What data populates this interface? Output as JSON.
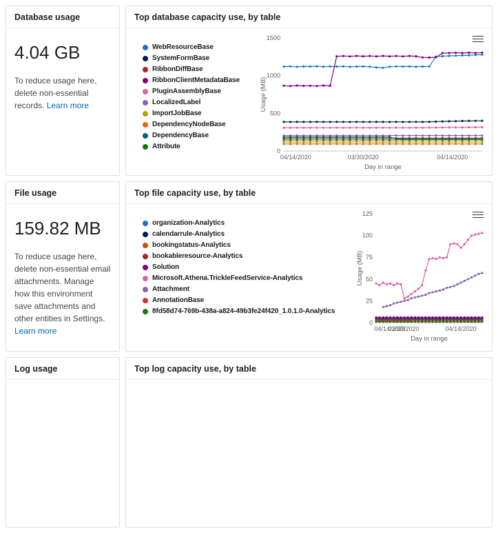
{
  "cards": {
    "database": {
      "title": "Database usage",
      "value": "4.04 GB",
      "description": "To reduce usage here, delete non-essential records. ",
      "link_label": "Learn more"
    },
    "database_chart": {
      "title": "Top database capacity use, by table"
    },
    "file": {
      "title": "File usage",
      "value": "159.82 MB",
      "description": "To reduce usage here, delete non-essential email attachments. Manage how this environment save attachments and other entities in Settings. ",
      "link_label": "Learn more"
    },
    "file_chart": {
      "title": "Top file capacity use, by table"
    },
    "log": {
      "title": "Log usage"
    },
    "log_chart": {
      "title": "Top log capacity use, by table"
    }
  },
  "chart_data": [
    {
      "type": "line",
      "title": "Top database capacity use, by table",
      "xlabel": "Day in range",
      "ylabel": "Usage (MB)",
      "ylim": [
        0,
        1500
      ],
      "yticks": [
        0,
        500,
        1000,
        1500
      ],
      "xtick_labels": [
        "04/14/2020",
        "03/30/2020",
        "04/14/2020"
      ],
      "xtick_pos": [
        0.06,
        0.4,
        0.85
      ],
      "legend_position": "left",
      "grid": false,
      "series": [
        {
          "name": "WebResourceBase",
          "color": "#1673c6",
          "values": [
            1120,
            1122,
            1118,
            1121,
            1120,
            1123,
            1119,
            1121,
            1120,
            1122,
            1118,
            1120,
            1121,
            1119,
            1108,
            1104,
            1118,
            1122,
            1120,
            1121,
            1119,
            1120,
            1122,
            1252,
            1258,
            1262,
            1264,
            1268,
            1270,
            1274,
            1278
          ]
        },
        {
          "name": "SystemFormBase",
          "color": "#002050",
          "values": [
            386,
            386,
            387,
            386,
            386,
            387,
            386,
            386,
            387,
            386,
            386,
            387,
            386,
            386,
            387,
            386,
            386,
            387,
            386,
            386,
            387,
            386,
            388,
            390,
            392,
            394,
            396,
            398,
            399,
            400,
            401
          ]
        },
        {
          "name": "RibbonDiffBase",
          "color": "#a4262c",
          "values": [
            170,
            170,
            171,
            170,
            170,
            171,
            170,
            170,
            171,
            170,
            170,
            171,
            170,
            170,
            171,
            170,
            170,
            171,
            170,
            170,
            171,
            170,
            170,
            171,
            170,
            170,
            171,
            170,
            170,
            171,
            170
          ]
        },
        {
          "name": "RibbonClientMetadataBase",
          "color": "#800080",
          "values": [
            866,
            862,
            868,
            864,
            866,
            862,
            868,
            864,
            1256,
            1260,
            1256,
            1261,
            1257,
            1260,
            1256,
            1261,
            1257,
            1260,
            1256,
            1261,
            1257,
            1241,
            1239,
            1243,
            1298,
            1301,
            1303,
            1300,
            1304,
            1301,
            1305
          ]
        },
        {
          "name": "PluginAssemblyBase",
          "color": "#e060a8",
          "values": [
            308,
            308,
            309,
            308,
            308,
            309,
            308,
            308,
            309,
            308,
            308,
            309,
            308,
            308,
            309,
            308,
            308,
            309,
            308,
            308,
            309,
            308,
            310,
            311,
            312,
            313,
            314,
            314,
            315,
            315,
            316
          ]
        },
        {
          "name": "LocalizedLabel",
          "color": "#8764b8",
          "values": [
            205,
            205,
            206,
            205,
            205,
            206,
            205,
            205,
            206,
            205,
            205,
            206,
            205,
            205,
            206,
            205,
            205,
            206,
            205,
            205,
            206,
            205,
            205,
            206,
            205,
            205,
            206,
            205,
            205,
            206,
            205
          ]
        },
        {
          "name": "ImportJobBase",
          "color": "#c19c00",
          "values": [
            120,
            120,
            121,
            120,
            120,
            121,
            120,
            120,
            121,
            120,
            120,
            121,
            120,
            120,
            121,
            120,
            120,
            121,
            120,
            120,
            121,
            120,
            120,
            121,
            120,
            120,
            121,
            120,
            120,
            121,
            120
          ]
        },
        {
          "name": "DependencyNodeBase",
          "color": "#e8680a",
          "values": [
            93,
            93,
            94,
            93,
            93,
            94,
            93,
            93,
            94,
            93,
            93,
            94,
            93,
            93,
            94,
            93,
            93,
            94,
            93,
            93,
            94,
            93,
            93,
            94,
            93,
            93,
            94,
            93,
            93,
            94,
            93
          ]
        },
        {
          "name": "DependencyBase",
          "color": "#00666d",
          "values": [
            186,
            186,
            187,
            186,
            186,
            187,
            186,
            186,
            187,
            186,
            186,
            187,
            186,
            186,
            187,
            186,
            186,
            160,
            158,
            157,
            158,
            157,
            157,
            158,
            157,
            157,
            158,
            157,
            157,
            158,
            157
          ]
        },
        {
          "name": "Attribute",
          "color": "#107c10",
          "values": [
            147,
            147,
            148,
            147,
            147,
            148,
            147,
            147,
            148,
            147,
            147,
            148,
            147,
            147,
            148,
            147,
            147,
            148,
            147,
            147,
            148,
            147,
            147,
            148,
            147,
            147,
            148,
            147,
            147,
            148,
            147
          ]
        }
      ]
    },
    {
      "type": "line",
      "title": "Top file capacity use, by table",
      "xlabel": "Day in range",
      "ylabel": "Usage (MB)",
      "ylim": [
        0,
        125
      ],
      "yticks": [
        0,
        25,
        50,
        75,
        100,
        125
      ],
      "xtick_labels": [
        "04/14/2020",
        "03/30/2020",
        "04/14/2020"
      ],
      "xtick_pos": [
        0.13,
        0.26,
        0.8
      ],
      "legend_position": "left",
      "grid": false,
      "series": [
        {
          "name": "organization-Analytics",
          "color": "#1673c6",
          "values": [
            5,
            5,
            5,
            5,
            5,
            5,
            5,
            5,
            5,
            5,
            5,
            5,
            5,
            5,
            5,
            5,
            5,
            5,
            5,
            5,
            5,
            5,
            5,
            5,
            5,
            5,
            5,
            5,
            5,
            5,
            5
          ]
        },
        {
          "name": "calendarrule-Analytics",
          "color": "#002050",
          "values": [
            4,
            4,
            4,
            4,
            4,
            4,
            4,
            4,
            4,
            4,
            4,
            4,
            4,
            4,
            4,
            4,
            4,
            4,
            4,
            4,
            4,
            4,
            4,
            4,
            4,
            4,
            4,
            4,
            4,
            4,
            4
          ]
        },
        {
          "name": "bookingstatus-Analytics",
          "color": "#ca5010",
          "values": [
            3,
            3,
            3,
            3,
            3,
            3,
            3,
            3,
            3,
            3,
            3,
            3,
            3,
            3,
            3,
            3,
            3,
            3,
            3,
            3,
            3,
            3,
            3,
            3,
            3,
            3,
            3,
            3,
            3,
            3,
            3
          ]
        },
        {
          "name": "bookableresource-Analytics",
          "color": "#a4262c",
          "values": [
            2.5,
            2.5,
            2.5,
            2.5,
            2.5,
            2.5,
            2.5,
            2.5,
            2.5,
            2.5,
            2.5,
            2.5,
            2.5,
            2.5,
            2.5,
            2.5,
            2.5,
            2.5,
            2.5,
            2.5,
            2.5,
            2.5,
            2.5,
            2.5,
            2.5,
            2.5,
            2.5,
            2.5,
            2.5,
            2.5,
            2.5
          ]
        },
        {
          "name": "Solution",
          "color": "#800080",
          "values": [
            6,
            6,
            6,
            6,
            6,
            6,
            6,
            6,
            6,
            6,
            6,
            6,
            6,
            6,
            6,
            6,
            6,
            6,
            6,
            6,
            6,
            6,
            6,
            6,
            6,
            6,
            6,
            6,
            6,
            6,
            6
          ]
        },
        {
          "name": "Microsoft.Athena.TrickleFeedService-Analytics",
          "color": "#e060a8",
          "values": [
            45,
            43,
            46,
            44,
            45,
            43,
            45,
            44,
            28,
            30,
            33,
            36,
            39,
            43,
            60,
            73,
            74,
            73,
            75,
            74,
            75,
            90,
            91,
            90,
            86,
            90,
            95,
            100,
            101,
            102,
            103
          ]
        },
        {
          "name": "Attachment",
          "color": "#8764b8",
          "values": [
            null,
            null,
            18,
            19,
            20,
            22,
            23,
            24,
            25,
            26,
            28,
            29,
            30,
            31,
            32,
            34,
            35,
            36,
            37,
            38,
            40,
            41,
            42,
            44,
            46,
            48,
            50,
            52,
            54,
            56,
            57
          ]
        },
        {
          "name": "AnnotationBase",
          "color": "#d13438",
          "values": [
            2,
            2,
            2,
            2,
            2,
            2,
            2,
            2,
            2,
            2,
            2,
            null,
            null,
            null,
            null,
            null,
            null,
            null,
            null,
            null,
            null,
            null,
            null,
            null,
            null,
            null,
            null,
            null,
            null,
            null,
            null
          ]
        },
        {
          "name": "8fd58d74-769b-438a-a824-49b3fe24f420_1.0.1.0-Analytics",
          "color": "#107c10",
          "values": [
            1,
            1,
            1,
            1,
            1,
            1,
            1,
            1,
            1,
            1,
            1,
            1,
            1,
            1,
            1,
            1,
            1,
            1,
            1,
            1,
            1,
            1,
            1,
            1,
            1,
            1,
            1,
            1,
            1,
            1,
            1
          ]
        }
      ]
    }
  ]
}
